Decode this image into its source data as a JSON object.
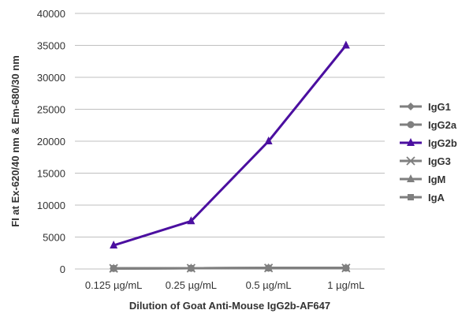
{
  "chart_data": {
    "type": "line",
    "title": "",
    "xlabel": "Dilution of Goat Anti-Mouse IgG2b-AF647",
    "ylabel": "FI at Ex-620/40 nm & Em-680/30 nm",
    "categories": [
      "0.125 µg/mL",
      "0.25 µg/mL",
      "0.5 µg/mL",
      "1 µg/mL"
    ],
    "ylim": [
      0,
      40000
    ],
    "yticks": [
      0,
      5000,
      10000,
      15000,
      20000,
      25000,
      30000,
      35000,
      40000
    ],
    "grid": true,
    "legend_position": "right",
    "series": [
      {
        "name": "IgG1",
        "values": [
          100,
          120,
          150,
          150
        ],
        "color": "#7f7f7f",
        "marker": "diamond"
      },
      {
        "name": "IgG2a",
        "values": [
          100,
          120,
          150,
          150
        ],
        "color": "#7f7f7f",
        "marker": "circle"
      },
      {
        "name": "IgG2b",
        "values": [
          3700,
          7500,
          20000,
          35000
        ],
        "color": "#4b0fa0",
        "marker": "triangle"
      },
      {
        "name": "IgG3",
        "values": [
          100,
          120,
          150,
          150
        ],
        "color": "#7f7f7f",
        "marker": "x"
      },
      {
        "name": "IgM",
        "values": [
          100,
          120,
          150,
          150
        ],
        "color": "#7f7f7f",
        "marker": "triangle"
      },
      {
        "name": "IgA",
        "values": [
          100,
          120,
          150,
          150
        ],
        "color": "#7f7f7f",
        "marker": "square"
      }
    ]
  }
}
